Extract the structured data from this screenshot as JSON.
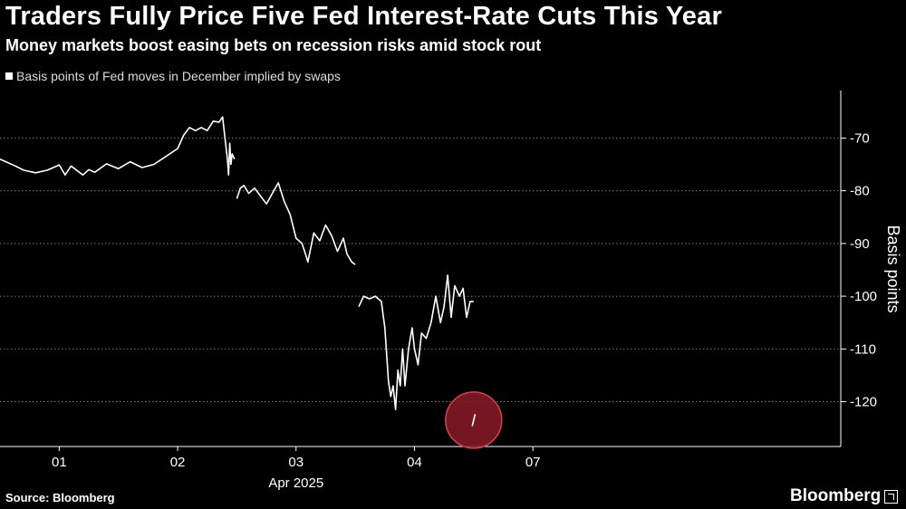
{
  "header": {
    "title": "Traders Fully Price Five Fed Interest-Rate Cuts This Year",
    "subtitle": "Money markets boost easing bets on recession risks amid stock rout"
  },
  "footer": {
    "source": "Source: Bloomberg",
    "brand": "Bloomberg"
  },
  "colors": {
    "background": "#000000",
    "line": "#ffffff",
    "grid": "#7a7a7a",
    "marker_fill": "#8b1a28",
    "marker_stroke": "#d6404f"
  },
  "chart_data": {
    "type": "line",
    "title": "Traders Fully Price Five Fed Interest-Rate Cuts This Year",
    "subtitle": "Money markets boost easing bets on recession risks amid stock rout",
    "legend": [
      "Basis points of Fed moves in December implied by swaps"
    ],
    "xlabel": "Apr 2025",
    "ylabel": "Basis points",
    "y_axis_side": "right",
    "ylim": [
      -128.5,
      -61
    ],
    "y_ticks": [
      -70,
      -80,
      -90,
      -100,
      -110,
      -120
    ],
    "y_tick_labels": [
      "-70",
      "-80",
      "-90",
      "-100",
      "-110",
      "-120"
    ],
    "xlim": [
      0.5,
      7.6
    ],
    "x_ticks": [
      1,
      2,
      3,
      4,
      5
    ],
    "x_tick_labels": [
      "01",
      "02",
      "03",
      "04",
      "07"
    ],
    "x_sublabel": "Apr 2025",
    "grid": "horizontal dotted",
    "series": [
      {
        "name": "Basis points of Fed moves in December implied by swaps",
        "segments": [
          {
            "x": [
              0.5,
              0.55,
              0.62,
              0.7,
              0.8,
              0.9,
              1.0,
              1.05,
              1.1,
              1.2,
              1.25,
              1.3,
              1.4,
              1.5,
              1.6,
              1.7,
              1.8,
              1.9,
              2.0,
              2.05,
              2.1,
              2.15,
              2.2,
              2.25,
              2.3,
              2.35,
              2.38,
              2.4,
              2.42,
              2.43,
              2.44,
              2.45,
              2.46,
              2.48
            ],
            "y": [
              -74,
              -74.5,
              -75.2,
              -76.1,
              -76.6,
              -76.1,
              -75.1,
              -77.0,
              -75.3,
              -77.0,
              -76.0,
              -76.5,
              -74.9,
              -75.8,
              -74.5,
              -75.6,
              -75.0,
              -73.5,
              -72.0,
              -69.5,
              -68.0,
              -68.6,
              -68.0,
              -68.6,
              -66.8,
              -67.0,
              -66.0,
              -70.0,
              -74.0,
              -77.0,
              -71.0,
              -75.0,
              -73.0,
              -74.0
            ]
          },
          {
            "x": [
              2.5,
              2.53,
              2.56,
              2.6,
              2.65,
              2.7,
              2.75,
              2.8,
              2.85,
              2.9,
              2.95,
              3.0,
              3.05,
              3.08,
              3.1,
              3.15,
              3.2,
              3.25,
              3.3,
              3.35,
              3.4,
              3.43,
              3.47,
              3.5
            ],
            "y": [
              -81.5,
              -79.5,
              -79.0,
              -80.5,
              -79.5,
              -81.0,
              -82.5,
              -80.5,
              -78.5,
              -82.0,
              -84.5,
              -89.0,
              -90.0,
              -92.0,
              -93.5,
              -88.0,
              -89.5,
              -86.5,
              -88.5,
              -91.5,
              -89.0,
              -92.0,
              -93.5,
              -94.0
            ]
          },
          {
            "x": [
              3.53,
              3.57,
              3.62,
              3.67,
              3.72,
              3.75,
              3.78,
              3.8,
              3.82,
              3.84,
              3.86,
              3.88,
              3.9,
              3.92,
              3.95,
              3.98,
              4.0,
              4.03,
              4.06,
              4.1,
              4.14,
              4.18,
              4.22,
              4.25,
              4.28,
              4.31,
              4.34,
              4.38,
              4.41,
              4.44,
              4.47,
              4.5
            ],
            "y": [
              -102,
              -100,
              -100.5,
              -100,
              -101,
              -106,
              -116,
              -119,
              -117,
              -121.5,
              -114,
              -117,
              -110,
              -117,
              -110,
              -106,
              -110,
              -113,
              -107,
              -108,
              -105,
              -100,
              -105,
              -102,
              -96,
              -104,
              -98,
              -100,
              -98.5,
              -104,
              -101,
              -101
            ]
          },
          {
            "x": [
              4.5
            ],
            "y": [
              -123.5
            ]
          }
        ]
      }
    ],
    "annotation": {
      "type": "circle marker",
      "x": 4.5,
      "y": -123.5
    }
  }
}
